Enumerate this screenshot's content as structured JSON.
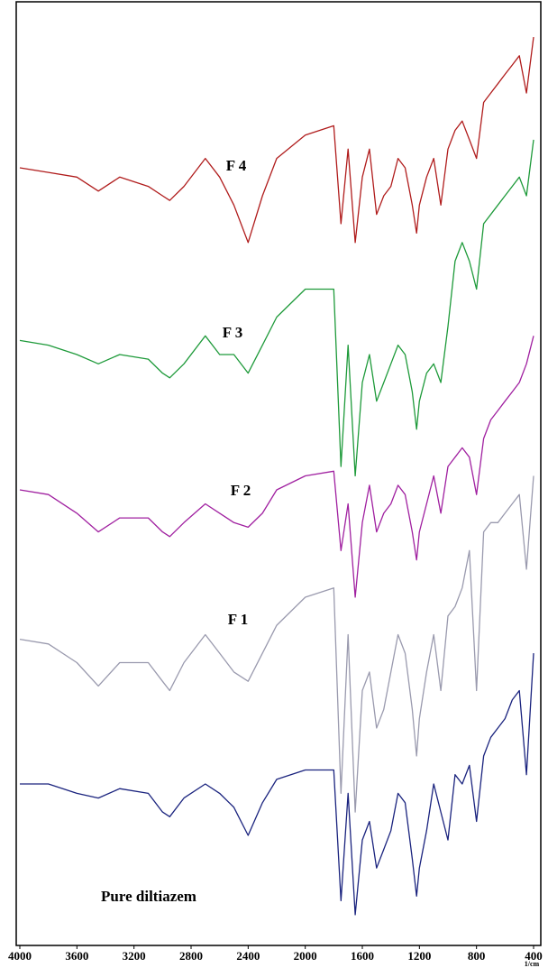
{
  "chart_data": {
    "type": "line",
    "x_label": "1/cm",
    "x": [
      4000,
      3800,
      3600,
      3450,
      3300,
      3100,
      3000,
      2950,
      2850,
      2700,
      2600,
      2500,
      2400,
      2300,
      2200,
      2000,
      1800,
      1750,
      1700,
      1650,
      1600,
      1550,
      1500,
      1450,
      1400,
      1350,
      1300,
      1250,
      1220,
      1200,
      1150,
      1100,
      1050,
      1000,
      950,
      900,
      850,
      800,
      750,
      700,
      650,
      600,
      550,
      500,
      450,
      400
    ],
    "xlim": [
      4000,
      400
    ],
    "xticks": [
      4000,
      3600,
      3200,
      2800,
      2400,
      2000,
      1600,
      1200,
      800,
      400
    ],
    "ylim": [
      0,
      100
    ],
    "series": [
      {
        "name": "F 4",
        "color": "#b01c1c",
        "values": [
          83,
          82.5,
          82,
          80.5,
          82,
          81,
          80,
          79.5,
          81,
          84,
          82,
          79,
          75,
          80,
          84,
          86.5,
          87.5,
          77,
          85,
          75,
          82,
          85,
          78,
          80,
          81,
          84,
          83,
          79,
          76,
          79,
          82,
          84,
          79,
          85,
          87,
          88,
          86,
          84,
          90,
          91,
          92,
          93,
          94,
          95,
          91,
          97
        ]
      },
      {
        "name": "F 3",
        "color": "#1e9a3a",
        "values": [
          64.5,
          64,
          63,
          62,
          63,
          62.5,
          61,
          60.5,
          62,
          65,
          63,
          63,
          61,
          64,
          67,
          70,
          70,
          51,
          64,
          50,
          60,
          63,
          58,
          60,
          62,
          64,
          63,
          59,
          55,
          58,
          61,
          62,
          60,
          66,
          73,
          75,
          73,
          70,
          77,
          78,
          79,
          80,
          81,
          82,
          80,
          86
        ]
      },
      {
        "name": "F 2",
        "color": "#a020a0",
        "values": [
          48.5,
          48,
          46,
          44,
          45.5,
          45.5,
          44,
          43.5,
          45,
          47,
          46,
          45,
          44.5,
          46,
          48.5,
          50,
          50.5,
          42,
          47,
          37,
          45,
          49,
          44,
          46,
          47,
          49,
          48,
          44,
          41,
          44,
          47,
          50,
          46,
          51,
          52,
          53,
          52,
          48,
          54,
          56,
          57,
          58,
          59,
          60,
          62,
          65
        ]
      },
      {
        "name": "F 1",
        "color": "#9a9aae",
        "values": [
          32.5,
          32,
          30,
          27.5,
          30,
          30,
          28,
          27,
          30,
          33,
          31,
          29,
          28,
          31,
          34,
          37,
          38,
          16,
          33,
          14,
          27,
          29,
          23,
          25,
          29,
          33,
          31,
          25,
          20,
          24,
          29,
          33,
          27,
          35,
          36,
          38,
          42,
          27,
          44,
          45,
          45,
          46,
          47,
          48,
          40,
          50
        ]
      },
      {
        "name": "Pure diltiazem",
        "color": "#1a237e",
        "values": [
          17,
          17,
          16,
          15.5,
          16.5,
          16,
          14,
          13.5,
          15.5,
          17,
          16,
          14.5,
          11.5,
          15,
          17.5,
          18.5,
          18.5,
          4.5,
          16,
          3,
          11,
          13,
          8,
          10,
          12,
          16,
          15,
          9,
          5,
          8,
          12,
          17,
          14,
          11,
          18,
          17,
          19,
          13,
          20,
          22,
          23,
          24,
          26,
          27,
          18,
          31
        ]
      }
    ]
  }
}
